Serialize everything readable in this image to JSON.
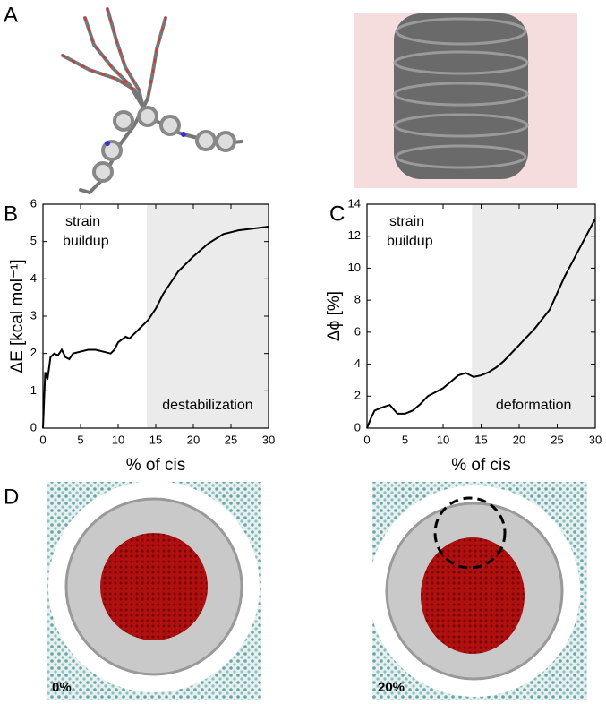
{
  "panel_labels": [
    "A",
    "B",
    "C",
    "D"
  ],
  "image_labels": [
    "0%",
    "20%"
  ],
  "chart_data": [
    {
      "type": "line",
      "ylabel": "ΔE [kcal mol⁻¹]",
      "xlabel": "% of cis",
      "xlim": [
        0,
        30
      ],
      "xticks": [
        0,
        5,
        10,
        15,
        20,
        25,
        30
      ],
      "ylim": [
        0,
        6
      ],
      "yticks": [
        0,
        1,
        2,
        3,
        4,
        5,
        6
      ],
      "shaded_region": [
        13.8,
        30
      ],
      "shade_color": "#ebebeb",
      "color": "#000000",
      "annotations": [
        "strain",
        "buildup",
        "destabilization"
      ],
      "x": [
        0,
        0.3,
        0.6,
        1,
        1.5,
        2,
        2.5,
        3,
        3.5,
        4,
        5,
        6,
        7,
        8,
        9,
        9.5,
        10,
        11,
        11.5,
        12,
        13,
        14,
        15,
        16,
        17,
        18,
        20,
        22,
        24,
        26,
        28,
        30
      ],
      "values": [
        0,
        1.5,
        1.3,
        1.9,
        2.0,
        1.95,
        2.1,
        1.9,
        1.85,
        2.0,
        2.05,
        2.1,
        2.1,
        2.05,
        2.0,
        2.1,
        2.3,
        2.45,
        2.4,
        2.5,
        2.7,
        2.9,
        3.2,
        3.6,
        3.9,
        4.2,
        4.6,
        4.95,
        5.2,
        5.3,
        5.35,
        5.4
      ]
    },
    {
      "type": "line",
      "ylabel": "Δϕ [%]",
      "xlabel": "% of cis",
      "xlim": [
        0,
        30
      ],
      "xticks": [
        0,
        5,
        10,
        15,
        20,
        25,
        30
      ],
      "ylim": [
        0,
        14
      ],
      "yticks": [
        0,
        2,
        4,
        6,
        8,
        10,
        12,
        14
      ],
      "shaded_region": [
        13.8,
        30
      ],
      "shade_color": "#ebebeb",
      "color": "#000000",
      "annotations": [
        "strain",
        "buildup",
        "deformation"
      ],
      "x": [
        0,
        0.5,
        1,
        2,
        3,
        4,
        5,
        6,
        7,
        8,
        10,
        11,
        12,
        13,
        14,
        15,
        16,
        17,
        18,
        20,
        22,
        24,
        26,
        28,
        30
      ],
      "values": [
        0,
        0.6,
        1.1,
        1.3,
        1.45,
        0.9,
        0.9,
        1.1,
        1.5,
        2.0,
        2.5,
        2.9,
        3.3,
        3.45,
        3.2,
        3.3,
        3.5,
        3.8,
        4.2,
        5.2,
        6.2,
        7.4,
        9.5,
        11.3,
        13.1
      ]
    }
  ]
}
